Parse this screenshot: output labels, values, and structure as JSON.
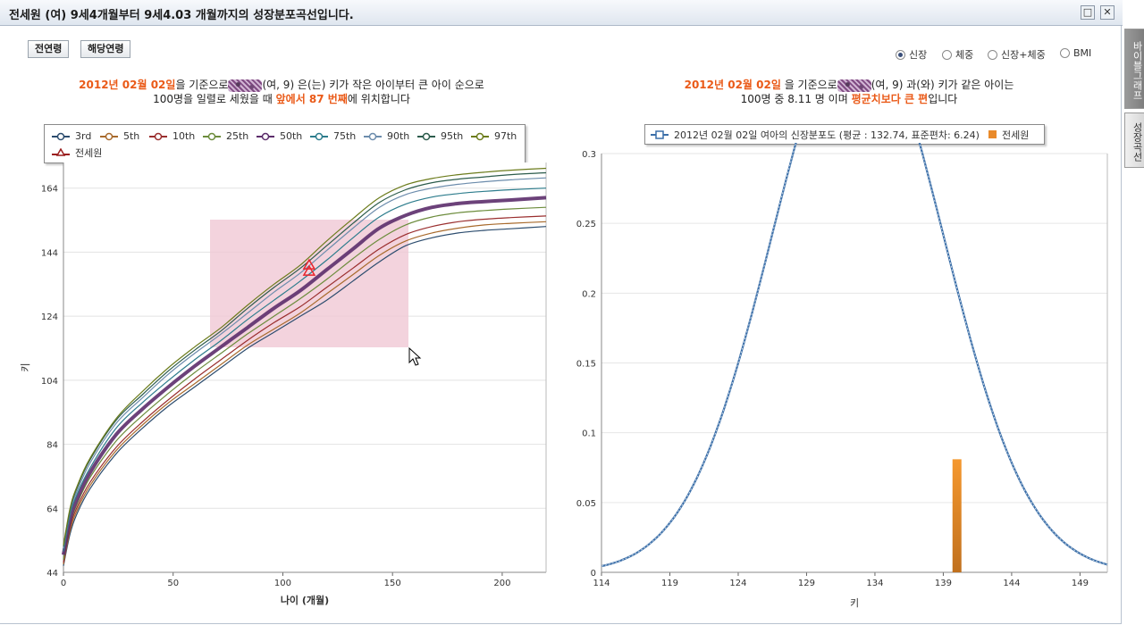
{
  "window": {
    "title": "전세원 (여) 9세4개월부터 9세4.03 개월까지의 성장분포곡선입니다.",
    "restore_glyph": "□",
    "close_glyph": "✕"
  },
  "buttons": {
    "all_ages": "전연령",
    "this_age": "해당연령"
  },
  "radios": [
    {
      "label": "신장",
      "selected": true
    },
    {
      "label": "체중",
      "selected": false
    },
    {
      "label": "신장+체중",
      "selected": false
    },
    {
      "label": "BMI",
      "selected": false
    }
  ],
  "side_tabs": {
    "tab1": "바이블그래프",
    "tab2": "성장곡선"
  },
  "left_desc": {
    "date": "2012년 02월 02일",
    "text1": "을 기준으로",
    "text2": "(여, 9) 은(는) 키가 작은 아이부터 큰 아이 순으로",
    "text3": "100명을 일렬로 세웠을 때",
    "highlight": "앞에서 87 번째",
    "text4": "에 위치합니다"
  },
  "right_desc": {
    "date": "2012년 02월 02일",
    "text1": " 을 기준으로",
    "text2": "(여, 9) 과(와) 키가 같은 아이는",
    "text3": "100명 중 8.11 명 이며",
    "highlight": "평균치보다 큰 편",
    "text4": "입니다"
  },
  "colors": {
    "highlight": "#ea5a18",
    "p50": "#5c2d6b",
    "selection": "#f0c8d4",
    "dist_line": "#3a6ea8",
    "bar": "#e98a2a",
    "marker": "#e8242c"
  },
  "legend_left": [
    {
      "name": "3rd",
      "color": "#2c4c6e"
    },
    {
      "name": "5th",
      "color": "#a86a2c"
    },
    {
      "name": "10th",
      "color": "#9a2e2e"
    },
    {
      "name": "25th",
      "color": "#6c8c3c"
    },
    {
      "name": "50th",
      "color": "#5c2d6b"
    },
    {
      "name": "75th",
      "color": "#2c7c8c"
    },
    {
      "name": "90th",
      "color": "#6c8cac"
    },
    {
      "name": "95th",
      "color": "#2c5c4c"
    },
    {
      "name": "97th",
      "color": "#6c7c1c"
    },
    {
      "name": "전세원",
      "color": "#9a1e1e"
    }
  ],
  "legend_right": {
    "series": "2012년 02월 02일 여아의 신장분포도 (평균 : 132.74, 표준편차: 6.24)",
    "bar": "전세원"
  },
  "chart_data": [
    {
      "type": "line",
      "xlabel": "나이 (개월)",
      "ylabel": "키",
      "xlim": [
        0,
        220
      ],
      "ylim": [
        44,
        172
      ],
      "x_ticks": [
        0,
        50,
        100,
        150,
        200
      ],
      "y_ticks": [
        44,
        64,
        84,
        104,
        124,
        144,
        164
      ],
      "x": [
        0,
        3,
        6,
        12,
        24,
        36,
        48,
        60,
        72,
        84,
        96,
        108,
        120,
        132,
        144,
        156,
        168,
        180,
        192,
        204,
        220
      ],
      "series": [
        {
          "name": "3rd",
          "values": [
            46,
            56,
            62,
            70,
            81,
            89,
            96,
            102,
            108,
            114,
            119,
            124,
            129,
            135,
            141,
            146,
            148.5,
            150,
            150.8,
            151.3,
            152
          ]
        },
        {
          "name": "5th",
          "values": [
            46.5,
            57,
            63,
            71,
            82,
            90,
            97,
            103,
            109,
            115,
            120,
            125,
            131,
            137,
            143,
            147.5,
            150,
            151.5,
            152.5,
            153,
            153.5
          ]
        },
        {
          "name": "10th",
          "values": [
            47,
            58,
            64,
            72,
            83,
            91,
            98,
            104.5,
            110.5,
            116.5,
            122,
            127,
            133,
            139,
            145,
            149.5,
            152,
            153.5,
            154.3,
            154.8,
            155.3
          ]
        },
        {
          "name": "25th",
          "values": [
            48,
            59,
            65,
            73.5,
            85,
            93,
            100,
            106.5,
            112.5,
            118.5,
            124,
            129.5,
            135.5,
            142,
            148,
            152.5,
            155,
            156.3,
            157,
            157.5,
            158
          ]
        },
        {
          "name": "50th",
          "values": [
            49.5,
            60.5,
            66.5,
            75,
            87,
            95,
            102,
            108.5,
            114.5,
            120.5,
            126.5,
            132,
            138.5,
            145,
            151.5,
            155.5,
            158,
            159.2,
            159.8,
            160.3,
            161
          ]
        },
        {
          "name": "75th",
          "values": [
            50.5,
            62,
            68,
            76.5,
            89,
            97,
            104,
            110.5,
            116.5,
            123,
            129,
            135,
            141.5,
            148.5,
            155,
            159,
            161.2,
            162.3,
            163,
            163.5,
            164
          ]
        },
        {
          "name": "90th",
          "values": [
            51.5,
            63,
            69,
            78,
            90.5,
            98.5,
            106,
            112.5,
            118.5,
            125,
            131.5,
            137.5,
            144.5,
            151.5,
            158,
            162,
            164,
            165.2,
            166,
            166.6,
            167.2
          ]
        },
        {
          "name": "95th",
          "values": [
            52,
            63.5,
            70,
            79,
            91.5,
            99.5,
            107,
            113.5,
            119.5,
            126.5,
            133,
            139,
            146,
            153,
            159.5,
            163.5,
            165.7,
            166.8,
            167.5,
            168.2,
            168.8
          ]
        },
        {
          "name": "97th",
          "values": [
            52.5,
            64,
            70.5,
            79.5,
            92,
            100.5,
            108,
            114.5,
            120.5,
            127.5,
            134,
            140,
            147.5,
            154.5,
            161,
            165,
            167,
            168.2,
            169,
            169.6,
            170.2
          ]
        }
      ],
      "marker": {
        "name": "전세원",
        "x": 112,
        "y": 138.5
      }
    },
    {
      "type": "line",
      "xlabel": "키",
      "ylabel": "",
      "xlim": [
        114,
        151
      ],
      "ylim": [
        0,
        0.3
      ],
      "x_ticks": [
        114,
        119,
        124,
        129,
        134,
        139,
        144,
        149
      ],
      "y_ticks": [
        0,
        0.05,
        0.1,
        0.15,
        0.2,
        0.25,
        0.3
      ],
      "distribution": {
        "mean": 132.74,
        "sd": 6.24
      },
      "bar": {
        "name": "전세원",
        "x": 140,
        "value": 0.081
      }
    }
  ]
}
